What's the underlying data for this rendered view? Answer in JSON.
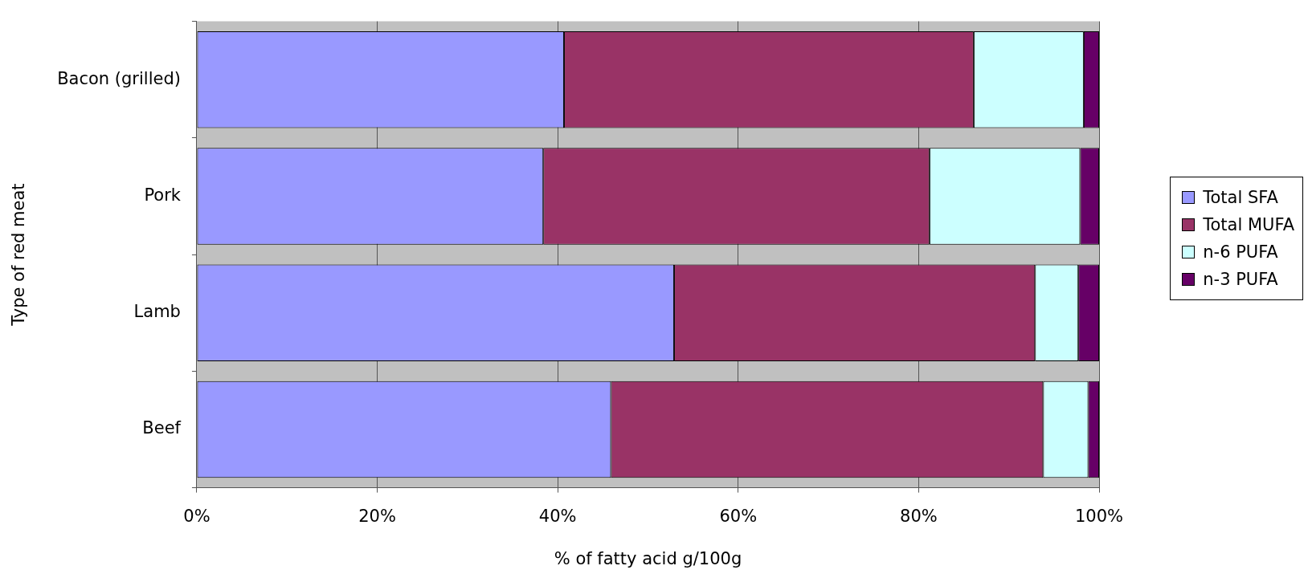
{
  "chart_data": {
    "type": "bar",
    "orientation": "horizontal",
    "stacked": true,
    "xlabel": "% of fatty acid g/100g",
    "ylabel": "Type of red meat",
    "categories": [
      "Bacon (grilled)",
      "Pork",
      "Lamb",
      "Beef"
    ],
    "series": [
      {
        "name": "Total SFA",
        "color": "#9999ff",
        "values": [
          40.7,
          38.4,
          52.9,
          45.9
        ]
      },
      {
        "name": "Total MUFA",
        "color": "#993366",
        "values": [
          45.4,
          42.8,
          40.0,
          47.9
        ]
      },
      {
        "name": "n-6 PUFA",
        "color": "#ccffff",
        "values": [
          12.2,
          16.7,
          4.8,
          5.0
        ]
      },
      {
        "name": "n-3 PUFA",
        "color": "#660066",
        "values": [
          1.7,
          2.1,
          2.3,
          1.2
        ]
      }
    ],
    "xlim": [
      0,
      100
    ],
    "xticks": [
      {
        "value": 0,
        "label": "0%"
      },
      {
        "value": 20,
        "label": "20%"
      },
      {
        "value": 40,
        "label": "40%"
      },
      {
        "value": 60,
        "label": "60%"
      },
      {
        "value": 80,
        "label": "80%"
      },
      {
        "value": 100,
        "label": "100%"
      }
    ],
    "grid": "x",
    "legend": "right"
  }
}
